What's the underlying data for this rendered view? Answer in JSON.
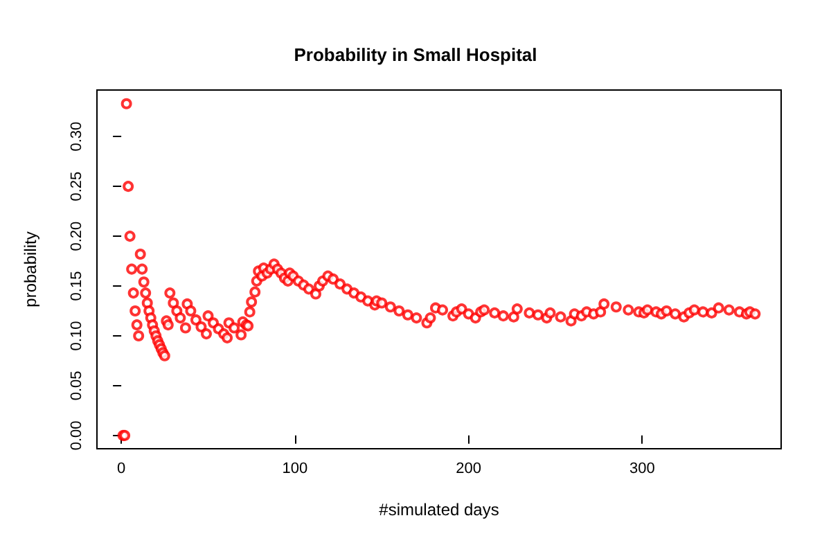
{
  "chart_data": {
    "type": "scatter",
    "title": "Probability in Small Hospital",
    "xlabel": "#simulated days",
    "ylabel": "probability",
    "xlim": [
      -14,
      380
    ],
    "xticks": [
      0,
      100,
      200,
      300
    ],
    "ylim": [
      -0.0133,
      0.3467
    ],
    "yticks": [
      {
        "value": 0,
        "label": "0.00"
      },
      {
        "value": 0.05,
        "label": "0.05"
      },
      {
        "value": 0.1,
        "label": "0.10"
      },
      {
        "value": 0.15,
        "label": "0.15"
      },
      {
        "value": 0.2,
        "label": "0.20"
      },
      {
        "value": 0.25,
        "label": "0.25"
      },
      {
        "value": 0.3,
        "label": "0.30"
      }
    ],
    "grid": false,
    "marker": "circle",
    "series": [
      {
        "color": "#ff0000",
        "x": [
          1,
          2,
          3,
          4,
          5,
          6,
          7,
          8,
          9,
          10,
          11,
          12,
          13,
          14,
          15,
          16,
          17,
          18,
          19,
          20,
          21,
          22,
          23,
          24,
          25,
          26,
          27,
          28,
          30,
          32,
          34,
          37,
          38,
          40,
          43,
          46,
          49,
          50,
          53,
          56,
          59,
          61,
          62,
          65,
          69,
          70,
          72,
          73,
          74,
          75,
          77,
          78,
          79,
          81,
          82,
          84,
          86,
          88,
          90,
          92,
          94,
          96,
          97,
          99,
          102,
          105,
          108,
          112,
          114,
          116,
          119,
          122,
          126,
          130,
          134,
          138,
          142,
          146,
          147,
          150,
          155,
          160,
          165,
          170,
          176,
          178,
          181,
          185,
          191,
          193,
          196,
          200,
          204,
          207,
          209,
          215,
          220,
          226,
          228,
          235,
          240,
          245,
          247,
          253,
          259,
          261,
          265,
          268,
          272,
          276,
          278,
          285,
          292,
          298,
          301,
          303,
          308,
          311,
          314,
          319,
          324,
          327,
          330,
          335,
          340,
          344,
          350,
          356,
          360,
          362,
          365
        ],
        "values": [
          0,
          0,
          0.333,
          0.25,
          0.2,
          0.167,
          0.143,
          0.125,
          0.111,
          0.1,
          0.182,
          0.167,
          0.154,
          0.143,
          0.133,
          0.125,
          0.118,
          0.111,
          0.105,
          0.1,
          0.095,
          0.091,
          0.087,
          0.083,
          0.08,
          0.115,
          0.111,
          0.143,
          0.133,
          0.125,
          0.118,
          0.108,
          0.132,
          0.125,
          0.116,
          0.109,
          0.102,
          0.12,
          0.113,
          0.107,
          0.102,
          0.098,
          0.113,
          0.108,
          0.101,
          0.114,
          0.111,
          0.11,
          0.124,
          0.134,
          0.144,
          0.155,
          0.165,
          0.16,
          0.168,
          0.163,
          0.167,
          0.172,
          0.167,
          0.163,
          0.158,
          0.155,
          0.163,
          0.16,
          0.155,
          0.151,
          0.147,
          0.142,
          0.15,
          0.155,
          0.16,
          0.157,
          0.152,
          0.147,
          0.143,
          0.139,
          0.135,
          0.131,
          0.135,
          0.133,
          0.129,
          0.125,
          0.121,
          0.118,
          0.113,
          0.118,
          0.128,
          0.126,
          0.12,
          0.124,
          0.127,
          0.122,
          0.118,
          0.124,
          0.126,
          0.123,
          0.12,
          0.119,
          0.127,
          0.123,
          0.121,
          0.118,
          0.123,
          0.119,
          0.115,
          0.122,
          0.12,
          0.124,
          0.122,
          0.124,
          0.132,
          0.129,
          0.126,
          0.124,
          0.123,
          0.126,
          0.124,
          0.122,
          0.125,
          0.122,
          0.119,
          0.123,
          0.126,
          0.124,
          0.123,
          0.128,
          0.126,
          0.124,
          0.122,
          0.124,
          0.122
        ]
      }
    ]
  }
}
